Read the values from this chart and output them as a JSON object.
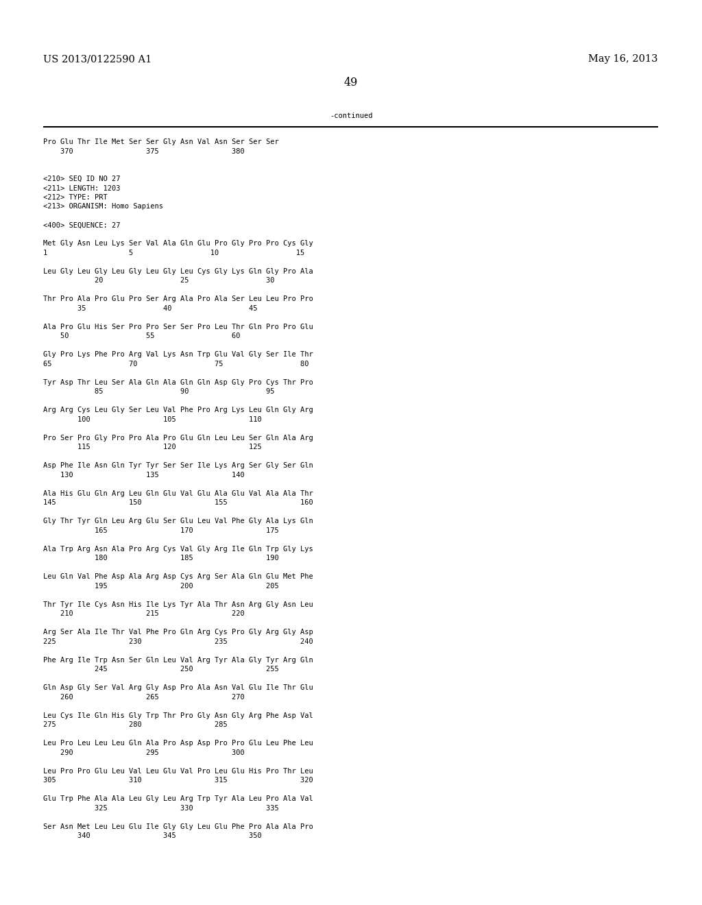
{
  "header_left": "US 2013/0122590 A1",
  "header_right": "May 16, 2013",
  "page_number": "49",
  "continued_label": "-continued",
  "background_color": "#ffffff",
  "text_color": "#000000",
  "font_size": 7.5,
  "header_font_size": 10.5,
  "content_lines": [
    "Pro Glu Thr Ile Met Ser Ser Gly Asn Val Asn Ser Ser Ser",
    "    370                 375                 380",
    "",
    "",
    "<210> SEQ ID NO 27",
    "<211> LENGTH: 1203",
    "<212> TYPE: PRT",
    "<213> ORGANISM: Homo Sapiens",
    "",
    "<400> SEQUENCE: 27",
    "",
    "Met Gly Asn Leu Lys Ser Val Ala Gln Glu Pro Gly Pro Pro Cys Gly",
    "1                   5                  10                  15",
    "",
    "Leu Gly Leu Gly Leu Gly Leu Gly Leu Cys Gly Lys Gln Gly Pro Ala",
    "            20                  25                  30",
    "",
    "Thr Pro Ala Pro Glu Pro Ser Arg Ala Pro Ala Ser Leu Leu Pro Pro",
    "        35                  40                  45",
    "",
    "Ala Pro Glu His Ser Pro Pro Ser Ser Pro Leu Thr Gln Pro Pro Glu",
    "    50                  55                  60",
    "",
    "Gly Pro Lys Phe Pro Arg Val Lys Asn Trp Glu Val Gly Ser Ile Thr",
    "65                  70                  75                  80",
    "",
    "Tyr Asp Thr Leu Ser Ala Gln Ala Gln Gln Asp Gly Pro Cys Thr Pro",
    "            85                  90                  95",
    "",
    "Arg Arg Cys Leu Gly Ser Leu Val Phe Pro Arg Lys Leu Gln Gly Arg",
    "        100                 105                 110",
    "",
    "Pro Ser Pro Gly Pro Pro Ala Pro Glu Gln Leu Leu Ser Gln Ala Arg",
    "        115                 120                 125",
    "",
    "Asp Phe Ile Asn Gln Tyr Tyr Ser Ser Ile Lys Arg Ser Gly Ser Gln",
    "    130                 135                 140",
    "",
    "Ala His Glu Gln Arg Leu Gln Glu Val Glu Ala Glu Val Ala Ala Thr",
    "145                 150                 155                 160",
    "",
    "Gly Thr Tyr Gln Leu Arg Glu Ser Glu Leu Val Phe Gly Ala Lys Gln",
    "            165                 170                 175",
    "",
    "Ala Trp Arg Asn Ala Pro Arg Cys Val Gly Arg Ile Gln Trp Gly Lys",
    "            180                 185                 190",
    "",
    "Leu Gln Val Phe Asp Ala Arg Asp Cys Arg Ser Ala Gln Glu Met Phe",
    "            195                 200                 205",
    "",
    "Thr Tyr Ile Cys Asn His Ile Lys Tyr Ala Thr Asn Arg Gly Asn Leu",
    "    210                 215                 220",
    "",
    "Arg Ser Ala Ile Thr Val Phe Pro Gln Arg Cys Pro Gly Arg Gly Asp",
    "225                 230                 235                 240",
    "",
    "Phe Arg Ile Trp Asn Ser Gln Leu Val Arg Tyr Ala Gly Tyr Arg Gln",
    "            245                 250                 255",
    "",
    "Gln Asp Gly Ser Val Arg Gly Asp Pro Ala Asn Val Glu Ile Thr Glu",
    "    260                 265                 270",
    "",
    "Leu Cys Ile Gln His Gly Trp Thr Pro Gly Asn Gly Arg Phe Asp Val",
    "275                 280                 285",
    "",
    "Leu Pro Leu Leu Leu Gln Ala Pro Asp Asp Pro Pro Glu Leu Phe Leu",
    "    290                 295                 300",
    "",
    "Leu Pro Pro Glu Leu Val Leu Glu Val Pro Leu Glu His Pro Thr Leu",
    "305                 310                 315                 320",
    "",
    "Glu Trp Phe Ala Ala Leu Gly Leu Arg Trp Tyr Ala Leu Pro Ala Val",
    "            325                 330                 335",
    "",
    "Ser Asn Met Leu Leu Glu Ile Gly Gly Leu Glu Phe Pro Ala Ala Pro",
    "        340                 345                 350"
  ]
}
